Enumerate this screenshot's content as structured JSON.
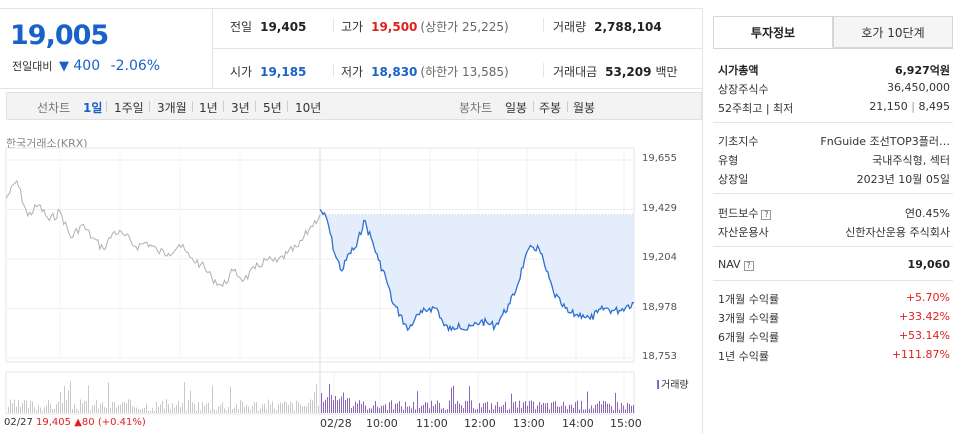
{
  "price": {
    "current": "19,005",
    "change_label": "전일대비",
    "change_arrow": "▼",
    "change_amount": "400",
    "change_pct": "-2.06%"
  },
  "summary": {
    "prev_close": {
      "label": "전일",
      "value": "19,405"
    },
    "high": {
      "label": "고가",
      "value": "19,500",
      "sub": "(상한가 25,225)"
    },
    "volume": {
      "label": "거래량",
      "value": "2,788,104"
    },
    "open": {
      "label": "시가",
      "value": "19,185"
    },
    "low": {
      "label": "저가",
      "value": "18,830",
      "sub": "(하한가 13,585)"
    },
    "amount": {
      "label": "거래대금",
      "value": "53,209",
      "unit": "백만"
    }
  },
  "tabs": {
    "line_label": "선차트",
    "line_tabs": [
      "1일",
      "1주일",
      "3개월",
      "1년",
      "3년",
      "5년",
      "10년"
    ],
    "active": "1일",
    "candle_label": "봉차트",
    "candle_tabs": [
      "일봉",
      "주봉",
      "월봉"
    ]
  },
  "exchange_label": "한국거래소(KRX)",
  "chart_data": {
    "type": "line",
    "y_ticks": [
      "19,655",
      "19,429",
      "19,204",
      "18,978",
      "18,753"
    ],
    "ylim": [
      18753,
      19655
    ],
    "x_ticks": [
      "02/28",
      "10:00",
      "11:00",
      "12:00",
      "13:00",
      "14:00",
      "15:00"
    ],
    "prev_close": 19405,
    "prev_day_label": "02/27",
    "prev_day_close": "19,405",
    "prev_day_arrow": "▲",
    "prev_day_change": "80",
    "prev_day_pct": "(+0.41%)",
    "volume_label": "거래량",
    "series": [
      {
        "period": "prev-day",
        "color": "#b0b0b0",
        "values": [
          19480,
          19560,
          19400,
          19450,
          19380,
          19420,
          19300,
          19360,
          19300,
          19250,
          19330,
          19310,
          19260,
          19280,
          19240,
          19230,
          19270,
          19210,
          19180,
          19120,
          19080,
          19150,
          19110,
          19160,
          19200,
          19190,
          19230,
          19260,
          19340,
          19405
        ]
      },
      {
        "period": "today",
        "color": "#2f6fd0",
        "values": [
          19430,
          19380,
          19230,
          19150,
          19230,
          19260,
          19380,
          19300,
          19200,
          19120,
          19000,
          18950,
          18880,
          18930,
          18960,
          18980,
          18980,
          18900,
          18880,
          18910,
          18880,
          18900,
          18920,
          18910,
          18900,
          18950,
          19000,
          19080,
          19200,
          19260,
          19250,
          19150,
          19050,
          19000,
          18960,
          18950,
          18950,
          18930,
          18960,
          18980,
          18970,
          18970,
          18990,
          19005
        ]
      }
    ]
  },
  "panel": {
    "tabs": [
      "투자정보",
      "호가 10단계"
    ],
    "active_tab": "투자정보",
    "market_cap": {
      "label": "시가총액",
      "value": "6,927억원"
    },
    "shares": {
      "label": "상장주식수",
      "value": "36,450,000"
    },
    "range52": {
      "label": "52주최고 | 최저",
      "high": "21,150",
      "low": "8,495"
    },
    "index": {
      "label": "기초지수",
      "value": "FnGuide 조선TOP3플러…"
    },
    "type": {
      "label": "유형",
      "value": "국내주식형, 섹터"
    },
    "listed": {
      "label": "상장일",
      "value": "2023년 10월 05일"
    },
    "fee": {
      "label": "펀드보수",
      "value": "연0.45%"
    },
    "manager": {
      "label": "자산운용사",
      "value": "신한자산운용 주식회사"
    },
    "nav": {
      "label": "NAV",
      "value": "19,060"
    },
    "returns": [
      {
        "label": "1개월 수익률",
        "value": "+5.70%"
      },
      {
        "label": "3개월 수익률",
        "value": "+33.42%"
      },
      {
        "label": "6개월 수익률",
        "value": "+53.14%"
      },
      {
        "label": "1년 수익률",
        "value": "+111.87%"
      }
    ]
  }
}
